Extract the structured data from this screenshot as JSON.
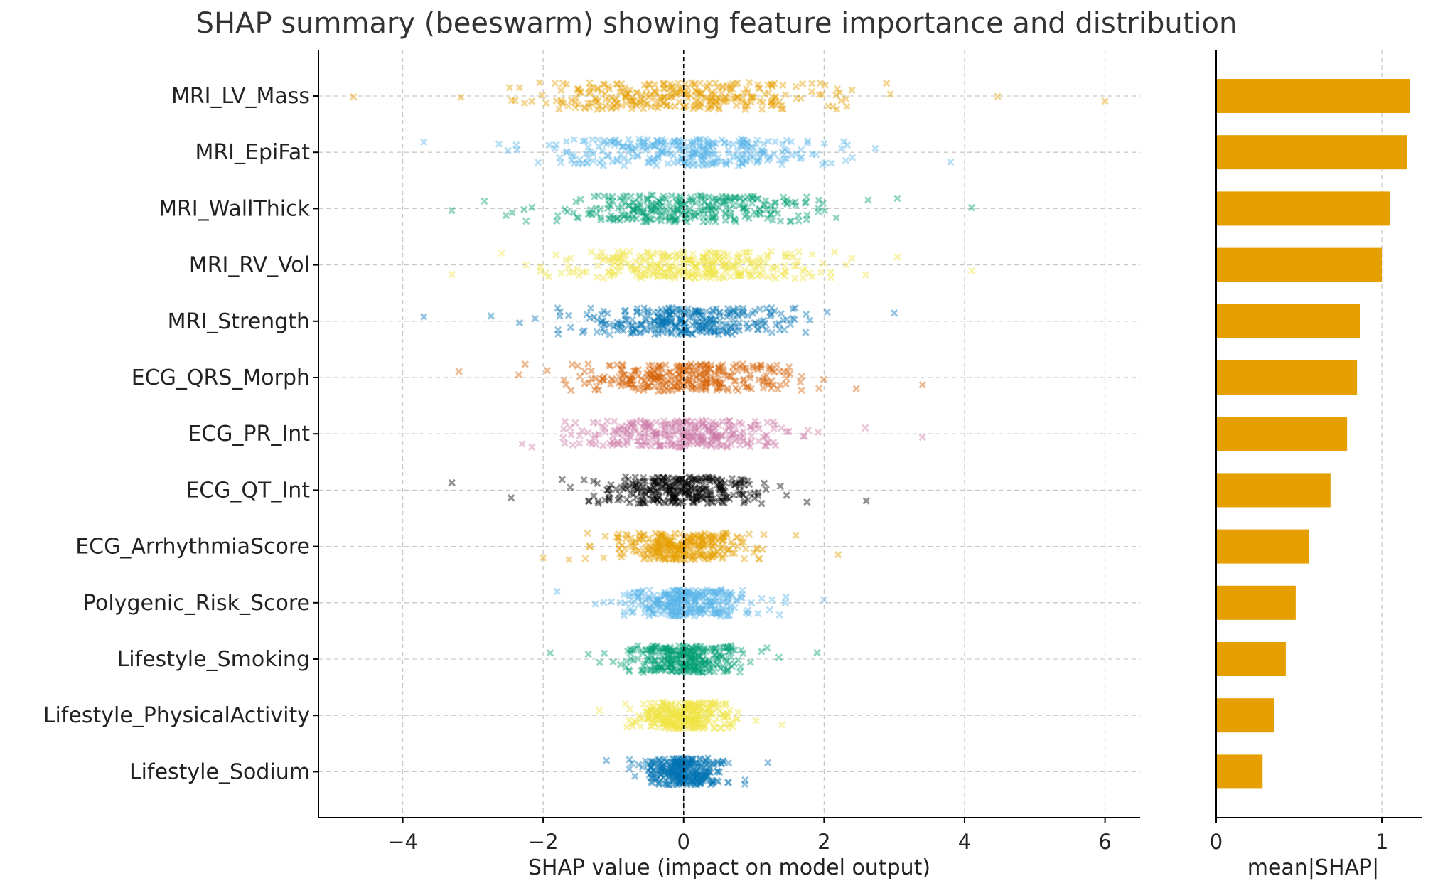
{
  "chart_data": [
    {
      "type": "scatter",
      "title": "SHAP summary (beeswarm) showing feature importance and distribution",
      "xlabel": "SHAP value (impact on model output)",
      "ylabel": "",
      "xlim": [
        -5.2,
        6.5
      ],
      "xticks": [
        -4,
        -2,
        0,
        2,
        4,
        6
      ],
      "xtick_labels": [
        "−4",
        "−2",
        "0",
        "2",
        "4",
        "6"
      ],
      "grid": true,
      "marker": "x",
      "features": [
        {
          "name": "MRI_LV_Mass",
          "color": "#E69F00",
          "spread": 1.55,
          "min": -4.7,
          "max": 6.0
        },
        {
          "name": "MRI_EpiFat",
          "color": "#56B4E9",
          "spread": 1.5,
          "min": -3.7,
          "max": 3.8
        },
        {
          "name": "MRI_WallThick",
          "color": "#009E73",
          "spread": 1.4,
          "min": -3.3,
          "max": 4.1
        },
        {
          "name": "MRI_RV_Vol",
          "color": "#F0E442",
          "spread": 1.35,
          "min": -3.3,
          "max": 4.1
        },
        {
          "name": "MRI_Strength",
          "color": "#0072B2",
          "spread": 1.2,
          "min": -3.7,
          "max": 3.0
        },
        {
          "name": "ECG_QRS_Morph",
          "color": "#D55E00",
          "spread": 1.15,
          "min": -3.2,
          "max": 3.4
        },
        {
          "name": "ECG_PR_Int",
          "color": "#CC79A7",
          "spread": 1.05,
          "min": -2.3,
          "max": 3.4
        },
        {
          "name": "ECG_QT_Int",
          "color": "#000000",
          "spread": 0.9,
          "min": -3.3,
          "max": 2.6
        },
        {
          "name": "ECG_ArrhythmiaScore",
          "color": "#E69F00",
          "spread": 0.75,
          "min": -2.0,
          "max": 2.2
        },
        {
          "name": "Polygenic_Risk_Score",
          "color": "#56B4E9",
          "spread": 0.65,
          "min": -1.8,
          "max": 2.0
        },
        {
          "name": "Lifestyle_Smoking",
          "color": "#009E73",
          "spread": 0.6,
          "min": -1.9,
          "max": 1.9
        },
        {
          "name": "Lifestyle_PhysicalActivity",
          "color": "#F0E442",
          "spread": 0.5,
          "min": -1.2,
          "max": 1.4
        },
        {
          "name": "Lifestyle_Sodium",
          "color": "#0072B2",
          "spread": 0.4,
          "min": -1.1,
          "max": 1.2
        }
      ]
    },
    {
      "type": "bar",
      "orientation": "horizontal",
      "title": "",
      "xlabel": "mean|SHAP|",
      "xlim": [
        0,
        1.24
      ],
      "xticks": [
        0,
        1
      ],
      "xtick_labels": [
        "0",
        "1"
      ],
      "color": "#E69F00",
      "categories": [
        "MRI_LV_Mass",
        "MRI_EpiFat",
        "MRI_WallThick",
        "MRI_RV_Vol",
        "MRI_Strength",
        "ECG_QRS_Morph",
        "ECG_PR_Int",
        "ECG_QT_Int",
        "ECG_ArrhythmiaScore",
        "Polygenic_Risk_Score",
        "Lifestyle_Smoking",
        "Lifestyle_PhysicalActivity",
        "Lifestyle_Sodium"
      ],
      "values": [
        1.17,
        1.15,
        1.05,
        1.0,
        0.87,
        0.85,
        0.79,
        0.69,
        0.56,
        0.48,
        0.42,
        0.35,
        0.28
      ]
    }
  ]
}
